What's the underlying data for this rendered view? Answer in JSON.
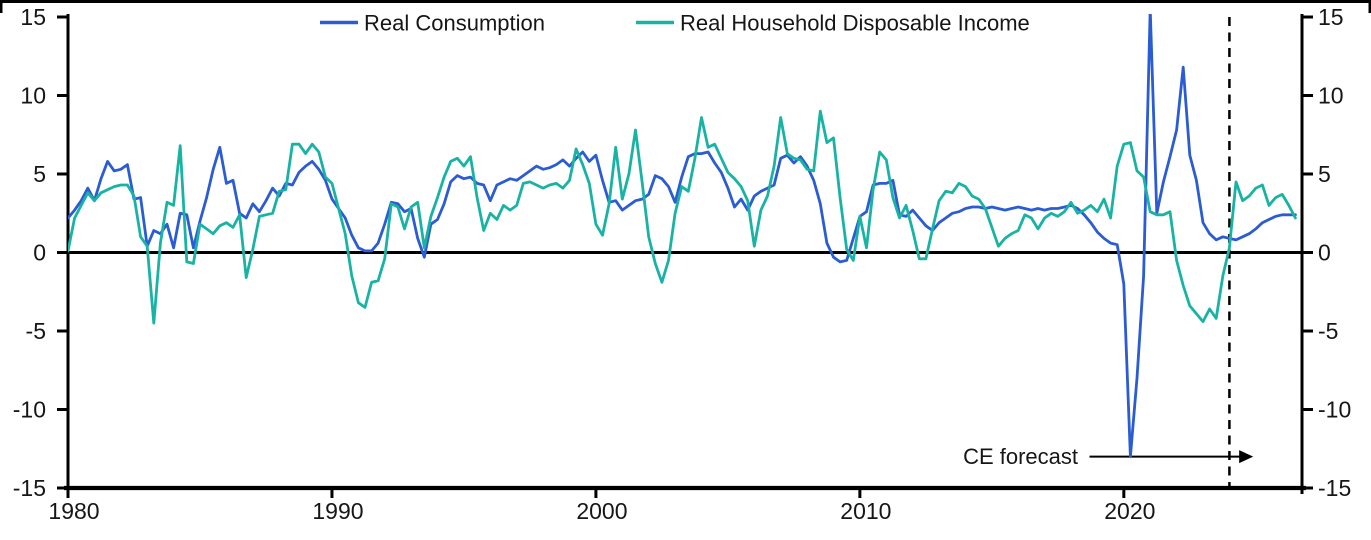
{
  "figure": {
    "background": "#ffffff",
    "frame_color": "#000000"
  },
  "chart_data": {
    "type": "line",
    "title": "",
    "xlabel": "",
    "ylabel": "",
    "xlim": [
      1980,
      2026.75
    ],
    "ylim": [
      -15,
      15
    ],
    "x_ticks": [
      1980,
      1990,
      2000,
      2010,
      2020
    ],
    "y_ticks": [
      15,
      10,
      5,
      0,
      -5,
      -10,
      -15
    ],
    "dual_y_axis": true,
    "zero_line": true,
    "grid": false,
    "legend_position": "top",
    "x_start": 1980.0,
    "x_step": 0.25,
    "x_end": 2026.5,
    "series": [
      {
        "name": "Real Consumption",
        "color": "#2B5CD3",
        "values": [
          2.2,
          2.7,
          3.3,
          4.1,
          3.3,
          4.7,
          5.8,
          5.2,
          5.3,
          5.6,
          3.4,
          3.5,
          0.4,
          1.4,
          1.2,
          1.8,
          0.3,
          2.5,
          2.4,
          0.3,
          2.0,
          3.5,
          5.3,
          6.7,
          4.4,
          4.6,
          2.5,
          2.2,
          3.1,
          2.6,
          3.3,
          4.1,
          3.6,
          4.4,
          4.3,
          5.1,
          5.5,
          5.8,
          5.3,
          4.6,
          3.4,
          2.8,
          2.2,
          1.1,
          0.3,
          0.1,
          0.1,
          0.6,
          1.8,
          3.2,
          3.1,
          2.6,
          2.8,
          0.9,
          -0.3,
          1.8,
          2.1,
          3.1,
          4.5,
          4.9,
          4.7,
          4.8,
          4.4,
          4.3,
          3.3,
          4.3,
          4.5,
          4.7,
          4.6,
          4.9,
          5.2,
          5.5,
          5.3,
          5.4,
          5.6,
          5.9,
          5.5,
          6.0,
          6.4,
          5.8,
          6.2,
          4.6,
          3.2,
          3.3,
          2.7,
          3.0,
          3.3,
          3.4,
          3.7,
          4.9,
          4.7,
          4.2,
          3.2,
          4.8,
          6.1,
          6.3,
          6.3,
          6.4,
          5.7,
          5.1,
          4.1,
          2.9,
          3.4,
          2.7,
          3.6,
          3.9,
          4.1,
          4.3,
          6.0,
          6.2,
          5.7,
          6.1,
          5.5,
          4.6,
          3.1,
          0.6,
          -0.3,
          -0.6,
          -0.5,
          0.9,
          2.3,
          2.6,
          4.3,
          4.4,
          4.4,
          4.6,
          2.4,
          2.3,
          2.7,
          2.2,
          1.7,
          1.4,
          1.9,
          2.2,
          2.5,
          2.6,
          2.8,
          2.9,
          2.9,
          2.8,
          2.9,
          2.8,
          2.7,
          2.8,
          2.9,
          2.8,
          2.7,
          2.8,
          2.7,
          2.8,
          2.8,
          2.9,
          3.0,
          2.8,
          2.4,
          1.9,
          1.3,
          0.9,
          0.6,
          0.5,
          -2.0,
          -13.0,
          -8.0,
          -1.5,
          15.5,
          2.5,
          4.5,
          6.1,
          7.8,
          11.8,
          6.2,
          4.6,
          1.9,
          1.2,
          0.8,
          1.0,
          0.9,
          0.8,
          1.0,
          1.2,
          1.5,
          1.9,
          2.1,
          2.3,
          2.4,
          2.4,
          2.4
        ]
      },
      {
        "name": "Real Household Disposable Income",
        "color": "#19B3A4",
        "values": [
          0.1,
          2.2,
          3.0,
          3.8,
          3.3,
          3.8,
          4.0,
          4.2,
          4.3,
          4.3,
          3.6,
          1.0,
          0.4,
          -4.5,
          0.6,
          3.2,
          3.0,
          6.8,
          -0.6,
          -0.7,
          1.8,
          1.5,
          1.2,
          1.7,
          1.9,
          1.6,
          2.4,
          -1.6,
          0.2,
          2.3,
          2.4,
          2.5,
          3.9,
          4.0,
          6.9,
          6.9,
          6.3,
          6.9,
          6.4,
          4.8,
          4.4,
          2.8,
          1.2,
          -1.5,
          -3.2,
          -3.5,
          -1.9,
          -1.8,
          -0.4,
          3.1,
          2.9,
          1.5,
          2.9,
          3.2,
          0.3,
          2.3,
          3.5,
          4.8,
          5.8,
          6.0,
          5.5,
          6.1,
          3.5,
          1.4,
          2.5,
          2.1,
          3.0,
          2.7,
          3.0,
          4.4,
          4.5,
          4.3,
          4.1,
          4.3,
          4.4,
          4.1,
          4.6,
          6.6,
          5.6,
          4.4,
          1.8,
          1.1,
          3.1,
          6.7,
          3.4,
          5.0,
          7.8,
          4.5,
          1.0,
          -0.7,
          -1.9,
          -0.5,
          2.5,
          4.2,
          3.9,
          6.0,
          8.6,
          6.7,
          6.9,
          6.0,
          5.1,
          4.7,
          4.2,
          3.3,
          0.4,
          2.7,
          3.6,
          5.5,
          8.6,
          6.3,
          6.0,
          5.9,
          5.3,
          5.2,
          9.0,
          7.0,
          7.3,
          3.5,
          0.2,
          -0.5,
          2.3,
          0.3,
          4.0,
          6.4,
          5.9,
          3.5,
          2.2,
          3.0,
          1.4,
          -0.4,
          -0.4,
          1.5,
          3.3,
          3.9,
          3.8,
          4.4,
          4.2,
          3.6,
          3.4,
          2.8,
          1.6,
          0.4,
          0.9,
          1.2,
          1.4,
          2.4,
          2.2,
          1.5,
          2.2,
          2.5,
          2.3,
          2.6,
          3.2,
          2.5,
          2.7,
          3.0,
          2.6,
          3.4,
          2.2,
          5.5,
          6.9,
          7.0,
          5.2,
          4.8,
          2.6,
          2.4,
          2.4,
          2.6,
          -0.5,
          -2.1,
          -3.4,
          -3.9,
          -4.4,
          -3.6,
          -4.2,
          -1.5,
          0.3,
          4.5,
          3.3,
          3.6,
          4.1,
          4.3,
          3.0,
          3.5,
          3.7,
          3.0,
          2.2
        ]
      }
    ],
    "annotations": {
      "forecast_label": "CE forecast",
      "forecast_line_year": 2024.0,
      "forecast_line_style": "dashed",
      "arrow": {
        "from_year": 2018.7,
        "to_year": 2024.9,
        "at_value": -13.0
      }
    }
  }
}
